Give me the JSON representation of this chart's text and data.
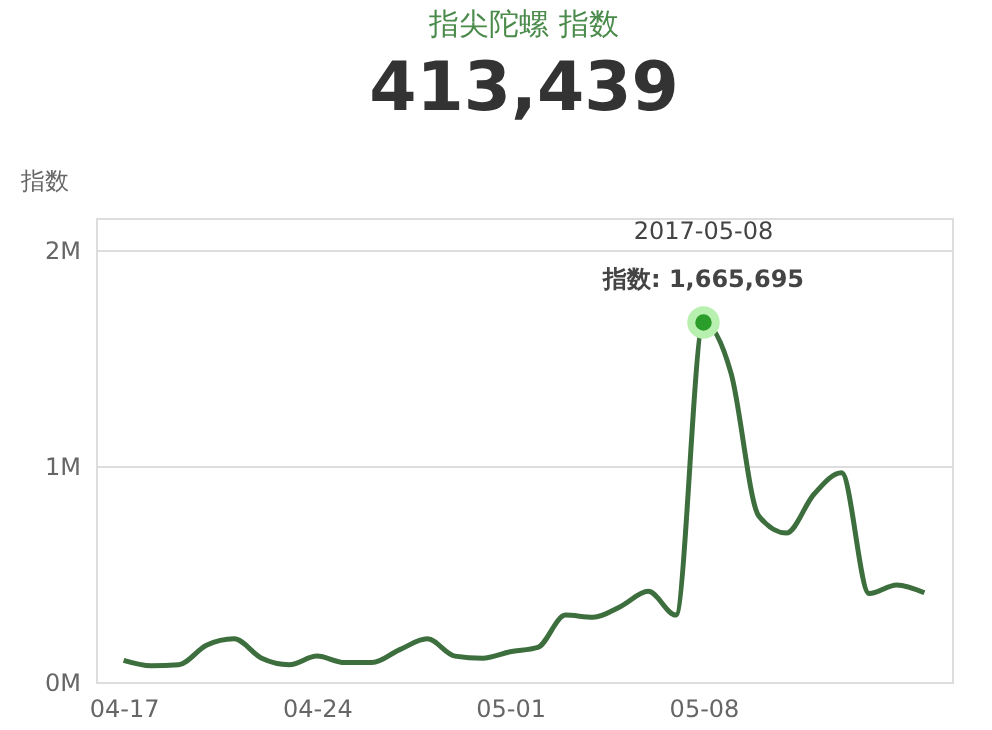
{
  "chart_data": {
    "type": "line",
    "title": "指尖陀螺 指数",
    "subtitle": "413,439",
    "ylabel": "指数",
    "x": [
      "2017-04-17",
      "2017-04-18",
      "2017-04-19",
      "2017-04-20",
      "2017-04-21",
      "2017-04-22",
      "2017-04-23",
      "2017-04-24",
      "2017-04-25",
      "2017-04-26",
      "2017-04-27",
      "2017-04-28",
      "2017-04-29",
      "2017-04-30",
      "2017-05-01",
      "2017-05-02",
      "2017-05-03",
      "2017-05-04",
      "2017-05-05",
      "2017-05-06",
      "2017-05-07",
      "2017-05-08",
      "2017-05-09",
      "2017-05-10",
      "2017-05-11",
      "2017-05-12",
      "2017-05-13",
      "2017-05-14",
      "2017-05-15",
      "2017-05-16"
    ],
    "series": [
      {
        "color": "#3d6e3d",
        "values": [
          100000,
          75000,
          80000,
          170000,
          200000,
          110000,
          80000,
          120000,
          90000,
          90000,
          150000,
          200000,
          120000,
          110000,
          140000,
          160000,
          310000,
          300000,
          350000,
          420000,
          310000,
          1665695,
          1430000,
          770000,
          690000,
          870000,
          970000,
          410000,
          450000,
          413439
        ]
      }
    ],
    "xlim": [
      "2017-04-16",
      "2017-05-17"
    ],
    "xticks": [
      {
        "value": "2017-04-17",
        "label": "04-17"
      },
      {
        "value": "2017-04-24",
        "label": "04-24"
      },
      {
        "value": "2017-05-01",
        "label": "05-01"
      },
      {
        "value": "2017-05-08",
        "label": "05-08"
      }
    ],
    "ylim": [
      0,
      2150000
    ],
    "yticks": [
      {
        "value": 0,
        "label": "0M"
      },
      {
        "value": 1000000,
        "label": "1M"
      },
      {
        "value": 2000000,
        "label": "2M"
      }
    ],
    "annotations": [
      "2017-05-08",
      {
        "text": "指数: 1,665,695",
        "x": "2017-05-08",
        "y": 1665695
      }
    ],
    "grid": "y",
    "marker": "none",
    "line_style": "solid"
  }
}
